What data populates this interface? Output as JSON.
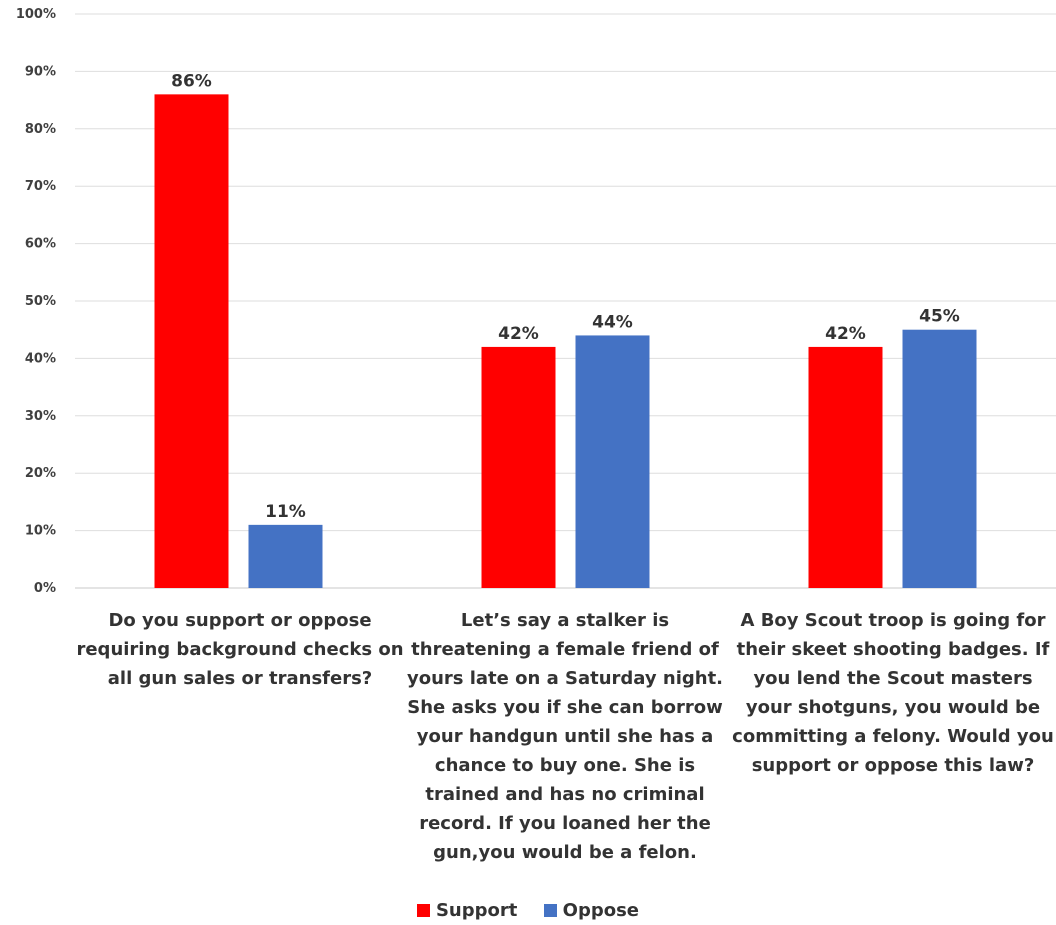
{
  "chart_data": {
    "type": "bar",
    "categories": [
      "Do you support or oppose requiring background checks on all gun sales or transfers?",
      "Let’s say a stalker is threatening a female friend of yours late on a Saturday night. She asks you if she can borrow your handgun until she has a chance to buy one. She is trained and has no criminal record. If you loaned her the gun,you would be a felon.",
      "A Boy Scout troop is going for their skeet shooting badges. If you lend the Scout masters your shotguns, you would be committing a felony. Would you support or oppose this law?"
    ],
    "series": [
      {
        "name": "Support",
        "color": "#ff0000",
        "values": [
          86,
          42,
          42
        ],
        "labels": [
          "86%",
          "42%",
          "42%"
        ]
      },
      {
        "name": "Oppose",
        "color": "#4472c4",
        "values": [
          11,
          44,
          45
        ],
        "labels": [
          "11%",
          "44%",
          "45%"
        ]
      }
    ],
    "ylim": [
      0,
      100
    ],
    "yticks": [
      "0%",
      "10%",
      "20%",
      "30%",
      "40%",
      "50%",
      "60%",
      "70%",
      "80%",
      "90%",
      "100%"
    ],
    "grid": true,
    "legend": "bottom",
    "title": "",
    "xlabel": "",
    "ylabel": ""
  }
}
